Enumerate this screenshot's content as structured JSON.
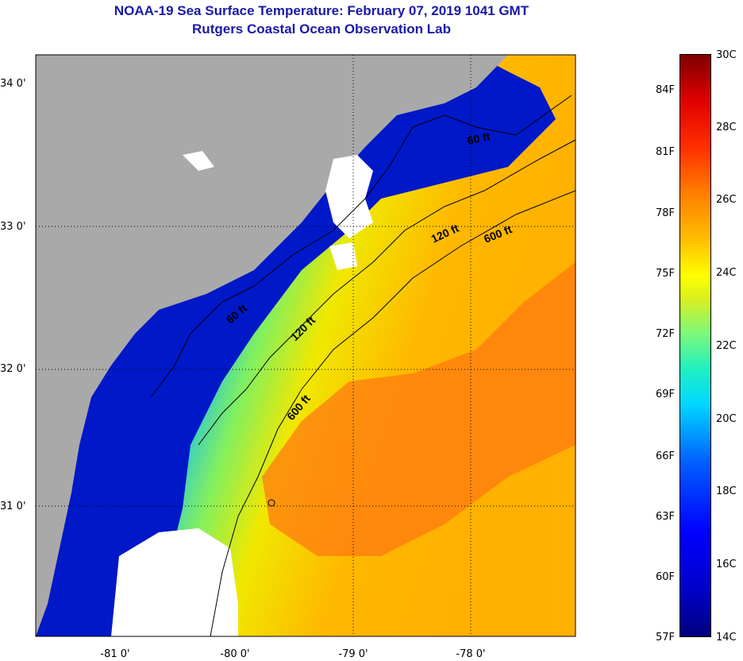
{
  "header": {
    "title_line1": "NOAA-19 Sea Surface Temperature:  February 07, 2019 1041 GMT",
    "title_line2": "Rutgers Coastal Ocean Observation Lab"
  },
  "map": {
    "lat_labels": [
      "34 0'",
      "33 0'",
      "32 0'",
      "31 0'"
    ],
    "lon_labels": [
      "-81 0'",
      "-80 0'",
      "-79 0'",
      "-78 0'"
    ],
    "isobaths": [
      {
        "label": "60 ft"
      },
      {
        "label": "60 ft"
      },
      {
        "label": "120 ft"
      },
      {
        "label": "120 ft"
      },
      {
        "label": "600 ft"
      },
      {
        "label": "600 ft"
      }
    ],
    "colors": {
      "land": "#a9a9a9",
      "cloud": "#ffffff",
      "cold_water": "#0010b8",
      "coast_line": "#000000"
    }
  },
  "colorbar": {
    "fahrenheit_labels": [
      "84F",
      "81F",
      "78F",
      "75F",
      "72F",
      "69F",
      "66F",
      "63F",
      "60F",
      "57F"
    ],
    "celsius_labels": [
      "30C",
      "28C",
      "26C",
      "24C",
      "22C",
      "20C",
      "18C",
      "16C",
      "14C"
    ]
  }
}
